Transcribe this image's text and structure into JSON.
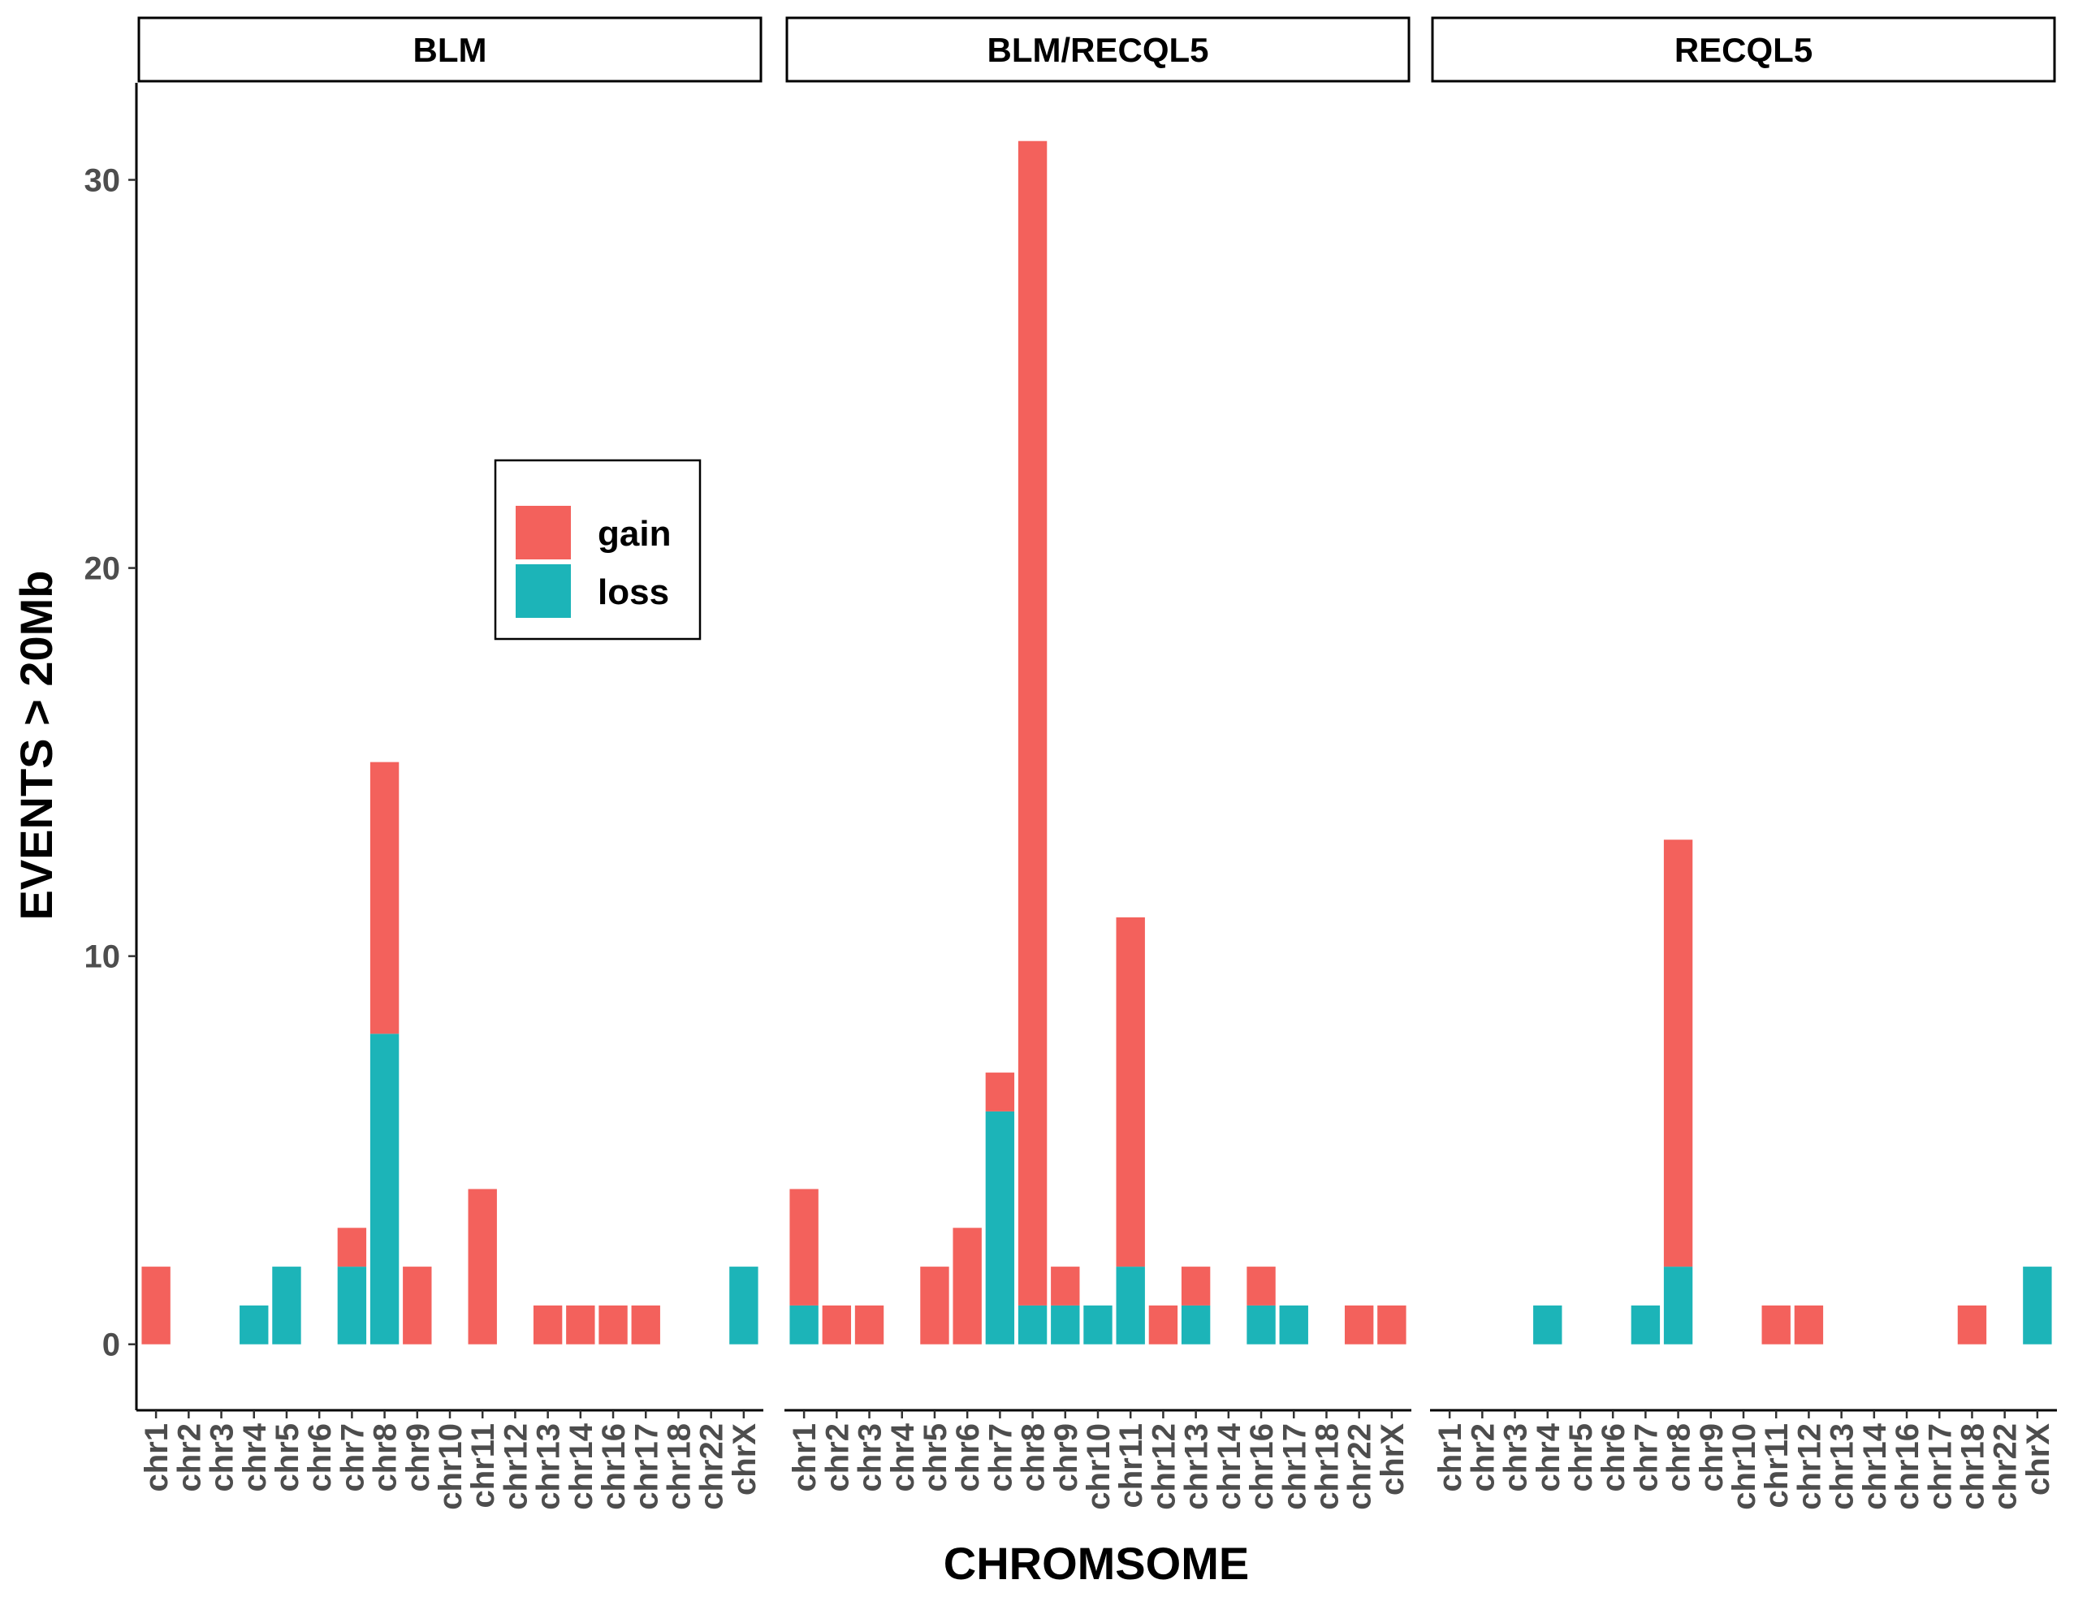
{
  "chart_data": {
    "type": "bar",
    "stacked": true,
    "xlabel": "CHROMSOME",
    "ylabel": "EVENTS > 20Mb",
    "ylim": [
      -1.7,
      32.5
    ],
    "yticks": [
      0,
      10,
      20,
      30
    ],
    "legend": {
      "placement": "inside-left-panel",
      "entries": [
        {
          "name": "gain",
          "color": "#F8766D"
        },
        {
          "name": "loss",
          "color": "#00BFC4"
        }
      ]
    },
    "colors": {
      "gain": "#F3615C",
      "loss": "#1CB4B8"
    },
    "panels": [
      {
        "title": "BLM",
        "categories": [
          "chr1",
          "chr2",
          "chr3",
          "chr4",
          "chr5",
          "chr6",
          "chr7",
          "chr8",
          "chr9",
          "chr10",
          "chr11",
          "chr12",
          "chr13",
          "chr14",
          "chr16",
          "chr17",
          "chr18",
          "chr22",
          "chrX"
        ],
        "series": [
          {
            "name": "loss",
            "values": [
              0,
              0,
              0,
              1,
              2,
              0,
              2,
              8,
              0,
              0,
              0,
              0,
              0,
              0,
              0,
              0,
              0,
              0,
              2
            ]
          },
          {
            "name": "gain",
            "values": [
              2,
              0,
              0,
              0,
              0,
              0,
              1,
              7,
              2,
              0,
              4,
              0,
              1,
              1,
              1,
              1,
              0,
              0,
              0
            ]
          }
        ]
      },
      {
        "title": "BLM/RECQL5",
        "categories": [
          "chr1",
          "chr2",
          "chr3",
          "chr4",
          "chr5",
          "chr6",
          "chr7",
          "chr8",
          "chr9",
          "chr10",
          "chr11",
          "chr12",
          "chr13",
          "chr14",
          "chr16",
          "chr17",
          "chr18",
          "chr22",
          "chrX"
        ],
        "series": [
          {
            "name": "loss",
            "values": [
              1,
              0,
              0,
              0,
              0,
              0,
              6,
              1,
              1,
              1,
              2,
              0,
              1,
              0,
              1,
              1,
              0,
              0,
              0
            ]
          },
          {
            "name": "gain",
            "values": [
              3,
              1,
              1,
              0,
              2,
              3,
              1,
              30,
              1,
              0,
              9,
              1,
              1,
              0,
              1,
              0,
              0,
              1,
              1
            ]
          }
        ]
      },
      {
        "title": "RECQL5",
        "categories": [
          "chr1",
          "chr2",
          "chr3",
          "chr4",
          "chr5",
          "chr6",
          "chr7",
          "chr8",
          "chr9",
          "chr10",
          "chr11",
          "chr12",
          "chr13",
          "chr14",
          "chr16",
          "chr17",
          "chr18",
          "chr22",
          "chrX"
        ],
        "series": [
          {
            "name": "loss",
            "values": [
              0,
              0,
              0,
              1,
              0,
              0,
              1,
              2,
              0,
              0,
              0,
              0,
              0,
              0,
              0,
              0,
              0,
              0,
              2
            ]
          },
          {
            "name": "gain",
            "values": [
              0,
              0,
              0,
              0,
              0,
              0,
              0,
              11,
              0,
              0,
              1,
              1,
              0,
              0,
              0,
              0,
              1,
              0,
              0
            ]
          }
        ]
      }
    ]
  }
}
